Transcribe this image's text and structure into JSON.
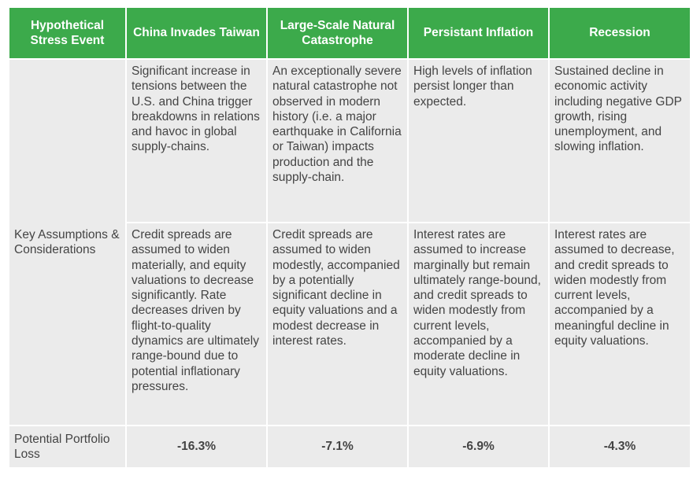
{
  "table": {
    "header": [
      "Hypothetical Stress Event",
      "China Invades Taiwan",
      "Large-Scale Natural Catastrophe",
      "Persistant Inflation",
      "Recession"
    ],
    "row_label": "Key Assumptions & Considerations",
    "descriptions": [
      "Significant increase in tensions between the U.S. and China trigger breakdowns in relations and havoc in global supply-chains.",
      "An exceptionally severe natural catastrophe not observed in modern history (i.e. a major earthquake in California or Taiwan) impacts production and the supply-chain.",
      "High levels of inflation persist longer than expected.",
      "Sustained decline in economic activity including negative GDP growth, rising unemployment, and slowing inflation."
    ],
    "assumptions": [
      "Credit spreads are assumed to widen materially, and equity valuations to decrease significantly. Rate decreases driven by flight-to-quality dynamics are ultimately range-bound due to potential inflationary pressures.",
      "Credit spreads are assumed to widen modestly, accompanied by a potentially significant decline in equity valuations and a modest decrease in interest rates.",
      "Interest rates are assumed to increase marginally but remain ultimately range-bound, and credit spreads to widen modestly from current levels, accompanied by a moderate decline in equity valuations.",
      "Interest rates are assumed to decrease, and credit spreads to widen modestly from current levels, accompanied by a meaningful decline in equity valuations."
    ],
    "loss_label": "Potential Portfolio Loss",
    "losses": [
      "-16.3%",
      "-7.1%",
      "-6.9%",
      "-4.3%"
    ]
  }
}
